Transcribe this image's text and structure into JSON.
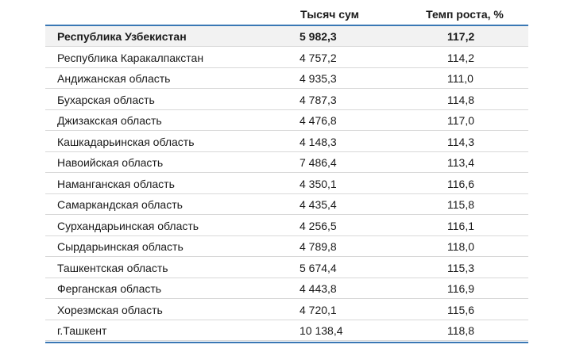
{
  "table": {
    "columns": [
      "Тысяч сум",
      "Темп роста, %"
    ],
    "rows": [
      [
        "Республика Узбекистан",
        "5 982,3",
        "117,2"
      ],
      [
        "Республика Каракалпакстан",
        "4 757,2",
        "114,2"
      ],
      [
        "Андижанская область",
        "4 935,3",
        "111,0"
      ],
      [
        "Бухарская область",
        "4 787,3",
        "114,8"
      ],
      [
        "Джизакская область",
        "4 476,8",
        "117,0"
      ],
      [
        "Кашкадарьинская область",
        "4 148,3",
        "114,3"
      ],
      [
        "Навоийская область",
        "7 486,4",
        "113,4"
      ],
      [
        "Наманганская область",
        "4 350,1",
        "116,6"
      ],
      [
        "Самаркандская область",
        "4 435,4",
        "115,8"
      ],
      [
        "Сурхандарьинская область",
        "4 256,5",
        "116,1"
      ],
      [
        "Сырдарьинская область",
        "4 789,8",
        "118,0"
      ],
      [
        "Ташкентская область",
        "5 674,4",
        "115,3"
      ],
      [
        "Ферганская область",
        "4 443,8",
        "116,9"
      ],
      [
        "Хорезмская область",
        "4 720,1",
        "115,6"
      ],
      [
        "г.Ташкент",
        "10 138,4",
        "118,8"
      ]
    ]
  }
}
